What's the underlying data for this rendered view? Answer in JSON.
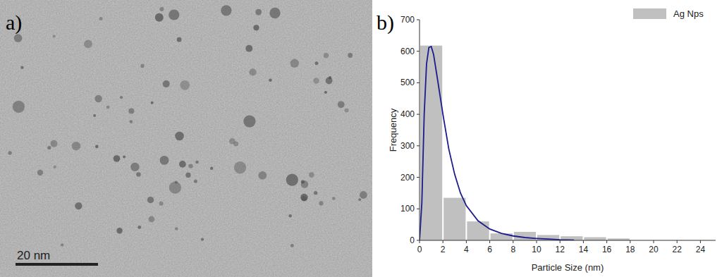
{
  "panels": {
    "a": {
      "label": "a)",
      "scale_bar": "20 nm"
    },
    "b": {
      "label": "b)"
    }
  },
  "chart_data": {
    "type": "histogram",
    "x_label": "Particle Size (nm)",
    "y_label": "Frequency",
    "bins": [
      0,
      2,
      4,
      6,
      8,
      10,
      12,
      14,
      16,
      18
    ],
    "series": [
      {
        "name": "Ag Nps",
        "type": "bar",
        "color": "#c0c0c0",
        "values": [
          618,
          135,
          60,
          22,
          27,
          17,
          13,
          10,
          6
        ]
      },
      {
        "type": "line",
        "color": "#1c1c8c",
        "line_style": "solid",
        "x": [
          0,
          0.2,
          0.4,
          0.6,
          0.8,
          1.0,
          1.2,
          1.5,
          2,
          2.5,
          3,
          3.5,
          4,
          5,
          6,
          7,
          8,
          9,
          10,
          11,
          12,
          13.2
        ],
        "values": [
          0,
          120,
          400,
          560,
          612,
          615,
          590,
          520,
          400,
          290,
          210,
          150,
          110,
          62,
          36,
          22,
          14,
          9,
          6,
          4,
          2,
          1
        ]
      }
    ],
    "xlim": [
      0,
      25.3
    ],
    "ylim": [
      0,
      700
    ],
    "xticks": [
      0,
      2,
      4,
      6,
      8,
      10,
      12,
      14,
      16,
      18,
      20,
      22,
      24
    ],
    "yticks": [
      0,
      100,
      200,
      300,
      400,
      500,
      600,
      700
    ],
    "legend": "upper right"
  }
}
